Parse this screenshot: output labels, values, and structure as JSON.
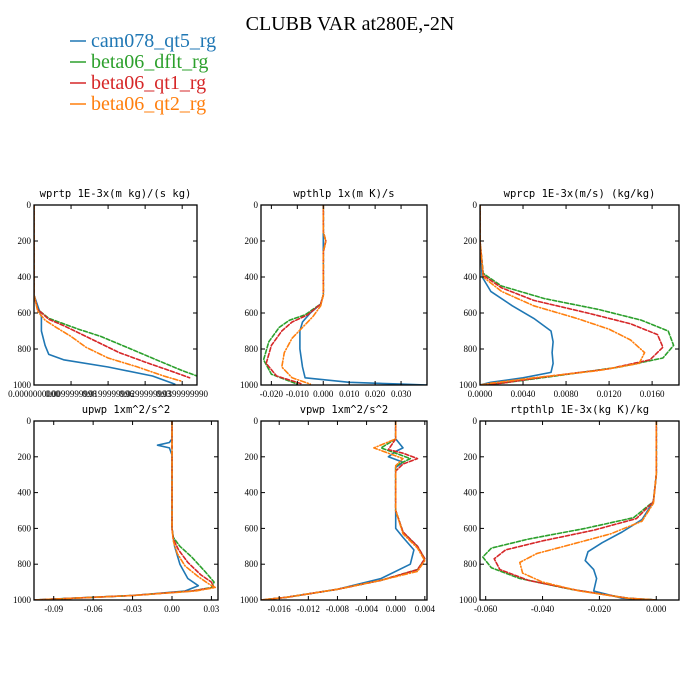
{
  "title": "CLUBB VAR at280E,-2N",
  "colors": {
    "cam078_qt5_rg": "#1f77b4",
    "beta06_dflt_rg": "#2ca02c",
    "beta06_qt1_rg": "#d62728",
    "beta06_qt2_rg": "#ff7f0e"
  },
  "legend": [
    {
      "label": "cam078_qt5_rg",
      "color": "#1f77b4",
      "dash": "none"
    },
    {
      "label": "beta06_dflt_rg",
      "color": "#2ca02c",
      "dash": "4,2"
    },
    {
      "label": "beta06_qt1_rg",
      "color": "#d62728",
      "dash": "4,2"
    },
    {
      "label": "beta06_qt2_rg",
      "color": "#ff7f0e",
      "dash": "5,2,1,2"
    }
  ],
  "chart_data": [
    {
      "type": "line",
      "title": "wprtp  1E-3x(m kg)/(s kg)",
      "xlim": [
        0,
        0.044
      ],
      "ylim": [
        1000,
        0
      ],
      "xticks": [
        0,
        0.01,
        0.02,
        0.03,
        0.04
      ],
      "xtick_labels": [
        "0.0000000000",
        "0.0099999998",
        "0.0199999996",
        "0.0299999993",
        "0.0399999990"
      ],
      "yticks": [
        0,
        200,
        400,
        600,
        800,
        1000
      ],
      "series": [
        {
          "name": "cam078_qt5_rg",
          "x": [
            0,
            0,
            0,
            0.001,
            0.002,
            0.002,
            0.003,
            0.004,
            0.008,
            0.02,
            0.032,
            0.038
          ],
          "y": [
            0,
            300,
            500,
            560,
            620,
            700,
            780,
            830,
            860,
            900,
            950,
            995
          ]
        },
        {
          "name": "beta06_dflt_rg",
          "x": [
            0,
            0,
            0.001,
            0.004,
            0.008,
            0.012,
            0.018,
            0.025,
            0.033,
            0.04,
            0.044
          ],
          "y": [
            0,
            500,
            580,
            630,
            660,
            690,
            730,
            790,
            860,
            920,
            950
          ]
        },
        {
          "name": "beta06_qt1_rg",
          "x": [
            0,
            0,
            0.001,
            0.004,
            0.008,
            0.012,
            0.017,
            0.023,
            0.031,
            0.038,
            0.042
          ],
          "y": [
            0,
            500,
            580,
            635,
            670,
            710,
            760,
            820,
            880,
            930,
            960
          ]
        },
        {
          "name": "beta06_qt2_rg",
          "x": [
            0,
            0,
            0.001,
            0.003,
            0.006,
            0.01,
            0.014,
            0.02,
            0.028,
            0.035,
            0.04
          ],
          "y": [
            0,
            500,
            590,
            640,
            680,
            730,
            790,
            850,
            900,
            950,
            980
          ]
        }
      ]
    },
    {
      "type": "line",
      "title": "wpthlp  1x(m K)/s",
      "xlim": [
        -0.024,
        0.04
      ],
      "ylim": [
        1000,
        0
      ],
      "xticks": [
        -0.02,
        -0.01,
        0,
        0.01,
        0.02,
        0.03
      ],
      "xtick_labels": [
        "-0.020",
        "-0.010",
        "0.000",
        "0.010",
        "0.020",
        "0.030"
      ],
      "yticks": [
        0,
        200,
        400,
        600,
        800,
        1000
      ],
      "series": [
        {
          "name": "cam078_qt5_rg",
          "x": [
            0,
            0,
            0,
            0,
            -0.001,
            -0.005,
            -0.008,
            -0.009,
            -0.009,
            -0.008,
            -0.007,
            0.01,
            0.03,
            0.04
          ],
          "y": [
            0,
            150,
            400,
            500,
            550,
            600,
            650,
            700,
            800,
            900,
            960,
            985,
            995,
            1000
          ]
        },
        {
          "name": "beta06_dflt_rg",
          "x": [
            0,
            0,
            0.001,
            0,
            0,
            -0.001,
            -0.007,
            -0.013,
            -0.017,
            -0.021,
            -0.023,
            -0.02,
            -0.01
          ],
          "y": [
            0,
            150,
            200,
            260,
            500,
            550,
            610,
            640,
            680,
            760,
            860,
            940,
            995
          ]
        },
        {
          "name": "beta06_qt1_rg",
          "x": [
            0,
            0,
            0.001,
            0,
            0,
            -0.001,
            -0.006,
            -0.012,
            -0.016,
            -0.02,
            -0.022,
            -0.018,
            -0.008
          ],
          "y": [
            0,
            150,
            200,
            260,
            500,
            550,
            610,
            650,
            700,
            780,
            880,
            950,
            995
          ]
        },
        {
          "name": "beta06_qt2_rg",
          "x": [
            0,
            0,
            0.001,
            0,
            0,
            -0.001,
            -0.004,
            -0.008,
            -0.012,
            -0.015,
            -0.016,
            -0.012,
            -0.005
          ],
          "y": [
            0,
            150,
            200,
            260,
            500,
            560,
            620,
            680,
            740,
            820,
            900,
            960,
            995
          ]
        }
      ]
    },
    {
      "type": "line",
      "title": "wprcp  1E-3x(m/s) (kg/kg)",
      "xlim": [
        0,
        0.0185
      ],
      "ylim": [
        1000,
        0
      ],
      "xticks": [
        0,
        0.004,
        0.008,
        0.012,
        0.016
      ],
      "xtick_labels": [
        "0.0000",
        "0.0040",
        "0.0080",
        "0.0120",
        "0.0160"
      ],
      "yticks": [
        0,
        200,
        400,
        600,
        800,
        1000
      ],
      "series": [
        {
          "name": "cam078_qt5_rg",
          "x": [
            0,
            0,
            0.0002,
            0.001,
            0.003,
            0.005,
            0.0066,
            0.0068,
            0.0067,
            0.0068,
            0.0066,
            0.004,
            0.001,
            0
          ],
          "y": [
            0,
            200,
            400,
            480,
            560,
            630,
            700,
            760,
            820,
            880,
            930,
            960,
            985,
            1000
          ]
        },
        {
          "name": "beta06_dflt_rg",
          "x": [
            0,
            0,
            0.0003,
            0.002,
            0.006,
            0.011,
            0.015,
            0.0175,
            0.018,
            0.017,
            0.013,
            0.007,
            0.002,
            0
          ],
          "y": [
            0,
            200,
            380,
            450,
            520,
            580,
            640,
            700,
            780,
            850,
            900,
            950,
            990,
            1000
          ]
        },
        {
          "name": "beta06_qt1_rg",
          "x": [
            0,
            0,
            0.0003,
            0.002,
            0.005,
            0.01,
            0.014,
            0.0165,
            0.017,
            0.0158,
            0.012,
            0.006,
            0.002,
            0
          ],
          "y": [
            0,
            200,
            390,
            460,
            530,
            600,
            660,
            720,
            790,
            860,
            910,
            955,
            990,
            1000
          ]
        },
        {
          "name": "beta06_qt2_rg",
          "x": [
            0,
            0,
            0.0003,
            0.002,
            0.005,
            0.009,
            0.012,
            0.014,
            0.0153,
            0.0148,
            0.011,
            0.005,
            0.001,
            0
          ],
          "y": [
            0,
            200,
            400,
            480,
            560,
            630,
            690,
            750,
            820,
            880,
            920,
            960,
            990,
            1000
          ]
        }
      ]
    },
    {
      "type": "line",
      "title": "upwp  1xm^2/s^2",
      "xlim": [
        -0.105,
        0.035
      ],
      "ylim": [
        1000,
        0
      ],
      "xticks": [
        -0.09,
        -0.06,
        -0.03,
        0,
        0.03
      ],
      "xtick_labels": [
        "-0.09",
        "-0.06",
        "-0.03",
        "0.00",
        "0.03"
      ],
      "yticks": [
        0,
        200,
        400,
        600,
        800,
        1000
      ],
      "series": [
        {
          "name": "cam078_qt5_rg",
          "x": [
            0,
            0,
            -0.002,
            -0.011,
            -0.002,
            0,
            0,
            0.002,
            0.006,
            0.012,
            0.02,
            0.01,
            -0.03,
            -0.09,
            -0.105
          ],
          "y": [
            0,
            100,
            120,
            135,
            150,
            190,
            600,
            700,
            800,
            880,
            920,
            950,
            975,
            995,
            1000
          ]
        },
        {
          "name": "beta06_dflt_rg",
          "x": [
            0,
            0,
            0,
            0,
            0.001,
            0.006,
            0.015,
            0.025,
            0.032,
            0.03,
            0.015,
            -0.03,
            -0.09,
            -0.105
          ],
          "y": [
            0,
            100,
            200,
            600,
            650,
            700,
            760,
            840,
            900,
            930,
            950,
            975,
            995,
            1000
          ]
        },
        {
          "name": "beta06_qt1_rg",
          "x": [
            0,
            0,
            0,
            0,
            0.001,
            0.005,
            0.012,
            0.022,
            0.03,
            0.032,
            0.015,
            -0.03,
            -0.09,
            -0.105
          ],
          "y": [
            0,
            100,
            200,
            600,
            660,
            720,
            790,
            860,
            900,
            930,
            950,
            975,
            995,
            1000
          ]
        },
        {
          "name": "beta06_qt2_rg",
          "x": [
            0,
            0,
            0,
            0,
            0.001,
            0.004,
            0.01,
            0.02,
            0.028,
            0.033,
            0.018,
            -0.03,
            -0.09,
            -0.105
          ],
          "y": [
            0,
            100,
            200,
            600,
            670,
            740,
            810,
            870,
            910,
            930,
            950,
            975,
            995,
            1000
          ]
        }
      ]
    },
    {
      "type": "line",
      "title": "vpwp  1xm^2/s^2",
      "xlim": [
        -0.0185,
        0.0043
      ],
      "ylim": [
        1000,
        0
      ],
      "xticks": [
        -0.016,
        -0.012,
        -0.008,
        -0.004,
        0,
        0.004
      ],
      "xtick_labels": [
        "-0.016",
        "-0.012",
        "-0.008",
        "-0.004",
        "0.000",
        "0.004"
      ],
      "yticks": [
        0,
        200,
        400,
        600,
        800,
        1000
      ],
      "series": [
        {
          "name": "cam078_qt5_rg",
          "x": [
            0,
            0,
            0.001,
            0,
            -0.001,
            0.001,
            0,
            0,
            0,
            0.001,
            0.0025,
            0.002,
            -0.002,
            -0.008,
            -0.015,
            -0.0185
          ],
          "y": [
            0,
            100,
            150,
            170,
            200,
            230,
            260,
            500,
            600,
            650,
            720,
            800,
            880,
            940,
            985,
            1000
          ]
        },
        {
          "name": "beta06_dflt_rg",
          "x": [
            0,
            0,
            -0.002,
            0,
            0.002,
            0,
            0,
            0,
            0.001,
            0.003,
            0.004,
            0.003,
            -0.002,
            -0.008,
            -0.015,
            -0.0185
          ],
          "y": [
            0,
            100,
            150,
            180,
            210,
            250,
            280,
            500,
            620,
            700,
            770,
            830,
            890,
            940,
            985,
            1000
          ]
        },
        {
          "name": "beta06_qt1_rg",
          "x": [
            0,
            0,
            -0.001,
            0.001,
            0.003,
            0.001,
            0,
            0,
            0.001,
            0.003,
            0.004,
            0.003,
            -0.002,
            -0.008,
            -0.015,
            -0.0185
          ],
          "y": [
            0,
            100,
            160,
            180,
            210,
            240,
            280,
            500,
            620,
            700,
            770,
            830,
            890,
            940,
            985,
            1000
          ]
        },
        {
          "name": "beta06_qt2_rg",
          "x": [
            0,
            0,
            -0.003,
            -0.001,
            0.001,
            0,
            0,
            0,
            0.001,
            0.003,
            0.004,
            0.003,
            -0.002,
            -0.008,
            -0.015,
            -0.0185
          ],
          "y": [
            0,
            100,
            150,
            180,
            210,
            250,
            280,
            500,
            630,
            710,
            780,
            840,
            890,
            940,
            985,
            1000
          ]
        }
      ]
    },
    {
      "type": "line",
      "title": "rtpthlp  1E-3x(kg K)/kg",
      "xlim": [
        -0.062,
        0.008
      ],
      "ylim": [
        1000,
        0
      ],
      "xticks": [
        -0.06,
        -0.04,
        -0.02,
        0
      ],
      "xtick_labels": [
        "-0.060",
        "-0.040",
        "-0.020",
        "0.000"
      ],
      "yticks": [
        0,
        200,
        400,
        600,
        800,
        1000
      ],
      "series": [
        {
          "name": "cam078_qt5_rg",
          "x": [
            0,
            0,
            -0.001,
            -0.005,
            -0.012,
            -0.019,
            -0.024,
            -0.025,
            -0.022,
            -0.021,
            -0.022,
            -0.012,
            -0.002,
            0
          ],
          "y": [
            0,
            300,
            450,
            550,
            620,
            680,
            730,
            780,
            830,
            880,
            950,
            990,
            998,
            1000
          ]
        },
        {
          "name": "beta06_dflt_rg",
          "x": [
            0,
            0,
            -0.001,
            -0.008,
            -0.025,
            -0.045,
            -0.058,
            -0.061,
            -0.058,
            -0.048,
            -0.03,
            -0.01,
            0
          ],
          "y": [
            0,
            300,
            450,
            540,
            600,
            660,
            710,
            760,
            820,
            880,
            940,
            990,
            1000
          ]
        },
        {
          "name": "beta06_qt1_rg",
          "x": [
            0,
            0,
            -0.001,
            -0.007,
            -0.022,
            -0.04,
            -0.053,
            -0.057,
            -0.055,
            -0.045,
            -0.028,
            -0.01,
            0
          ],
          "y": [
            0,
            300,
            450,
            545,
            610,
            670,
            720,
            770,
            830,
            890,
            945,
            990,
            1000
          ]
        },
        {
          "name": "beta06_qt2_rg",
          "x": [
            0,
            0,
            -0.001,
            -0.005,
            -0.016,
            -0.03,
            -0.042,
            -0.048,
            -0.047,
            -0.04,
            -0.027,
            -0.01,
            0
          ],
          "y": [
            0,
            300,
            460,
            560,
            630,
            690,
            740,
            790,
            850,
            900,
            950,
            990,
            1000
          ]
        }
      ]
    }
  ]
}
